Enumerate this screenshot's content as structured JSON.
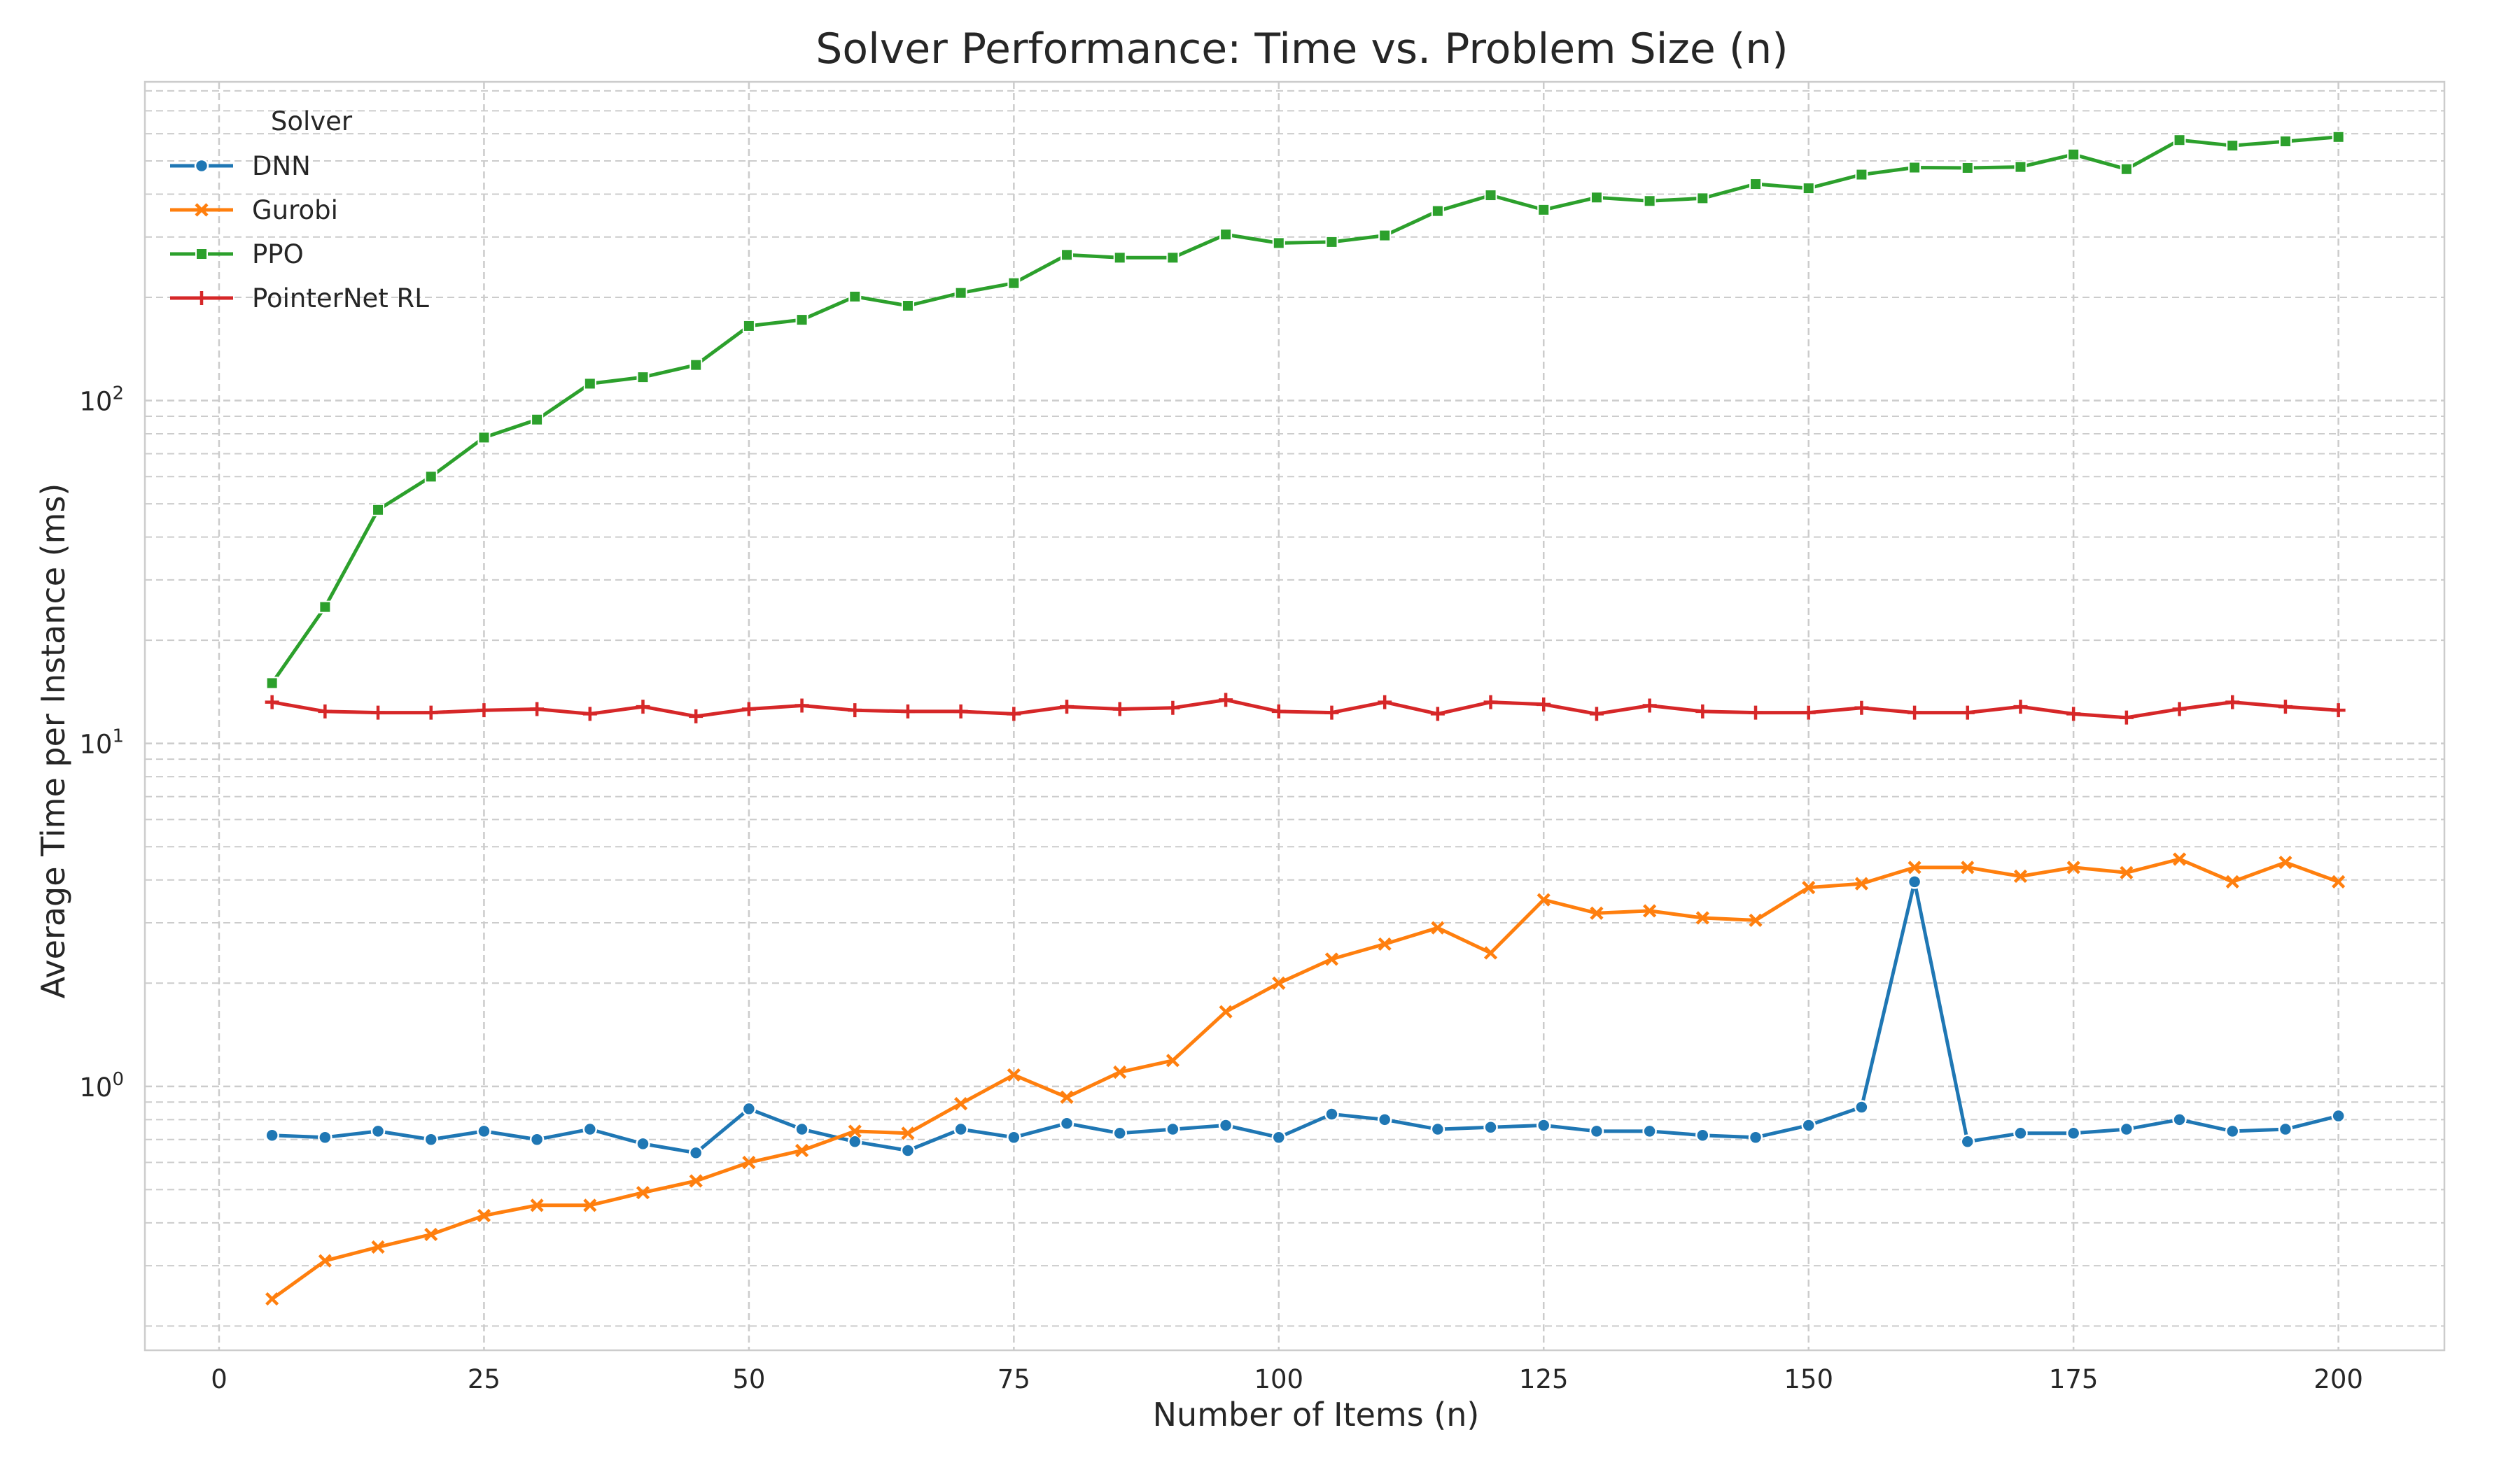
{
  "chart_data": {
    "type": "line",
    "title": "Solver Performance: Time vs. Problem Size (n)",
    "xlabel": "Number of Items (n)",
    "ylabel": "Average Time per Instance (ms)",
    "xlim": [
      -7,
      210
    ],
    "ylim": [
      0.17,
      850
    ],
    "yscale": "log",
    "grid": true,
    "legend": {
      "title": "Solver",
      "placement": "top-left"
    },
    "x_ticks": [
      "0",
      "25",
      "50",
      "75",
      "100",
      "125",
      "150",
      "175",
      "200"
    ],
    "x_tick_values": [
      0,
      25,
      50,
      75,
      100,
      125,
      150,
      175,
      200
    ],
    "y_ticks": [
      {
        "value": 1,
        "base": "10",
        "exp": "0"
      },
      {
        "value": 10,
        "base": "10",
        "exp": "1"
      },
      {
        "value": 100,
        "base": "10",
        "exp": "2"
      }
    ],
    "x": [
      5,
      10,
      15,
      20,
      25,
      30,
      35,
      40,
      45,
      50,
      55,
      60,
      65,
      70,
      75,
      80,
      85,
      90,
      95,
      100,
      105,
      110,
      115,
      120,
      125,
      130,
      135,
      140,
      145,
      150,
      155,
      160,
      165,
      170,
      175,
      180,
      185,
      190,
      195,
      200
    ],
    "series": [
      {
        "name": "DNN",
        "color": "#1f77b4",
        "marker": "circle",
        "values": [
          0.72,
          0.71,
          0.74,
          0.7,
          0.74,
          0.7,
          0.75,
          0.68,
          0.64,
          0.86,
          0.75,
          0.69,
          0.65,
          0.75,
          0.71,
          0.78,
          0.73,
          0.75,
          0.77,
          0.71,
          0.83,
          0.8,
          0.75,
          0.76,
          0.77,
          0.74,
          0.74,
          0.72,
          0.71,
          0.77,
          0.87,
          3.95,
          0.69,
          0.73,
          0.73,
          0.75,
          0.8,
          0.74,
          0.75,
          0.82
        ]
      },
      {
        "name": "Gurobi",
        "color": "#ff7f0e",
        "marker": "x",
        "values": [
          0.24,
          0.31,
          0.34,
          0.37,
          0.42,
          0.45,
          0.45,
          0.49,
          0.53,
          0.6,
          0.65,
          0.74,
          0.73,
          0.89,
          1.08,
          0.93,
          1.1,
          1.19,
          1.65,
          2.0,
          2.35,
          2.6,
          2.9,
          2.45,
          3.5,
          3.2,
          3.25,
          3.1,
          3.05,
          3.8,
          3.9,
          4.35,
          4.35,
          4.1,
          4.35,
          4.2,
          4.6,
          3.95,
          4.5,
          3.95
        ]
      },
      {
        "name": "PPO",
        "color": "#2ca02c",
        "marker": "square",
        "values": [
          15,
          25,
          48,
          60,
          78,
          88,
          112,
          117,
          127,
          165,
          172,
          201,
          189,
          206,
          220,
          266,
          261,
          261,
          305,
          288,
          290,
          303,
          357,
          397,
          360,
          391,
          382,
          389,
          428,
          416,
          456,
          478,
          477,
          480,
          522,
          473,
          575,
          554,
          570,
          587
        ]
      },
      {
        "name": "PointerNet RL",
        "color": "#d62728",
        "marker": "plus",
        "values": [
          13.2,
          12.4,
          12.3,
          12.3,
          12.5,
          12.6,
          12.2,
          12.8,
          12.0,
          12.6,
          12.9,
          12.5,
          12.4,
          12.4,
          12.2,
          12.8,
          12.6,
          12.7,
          13.4,
          12.4,
          12.3,
          13.2,
          12.2,
          13.2,
          13.0,
          12.2,
          12.9,
          12.4,
          12.3,
          12.3,
          12.7,
          12.3,
          12.3,
          12.8,
          12.2,
          11.9,
          12.6,
          13.2,
          12.8,
          12.5
        ]
      }
    ]
  }
}
